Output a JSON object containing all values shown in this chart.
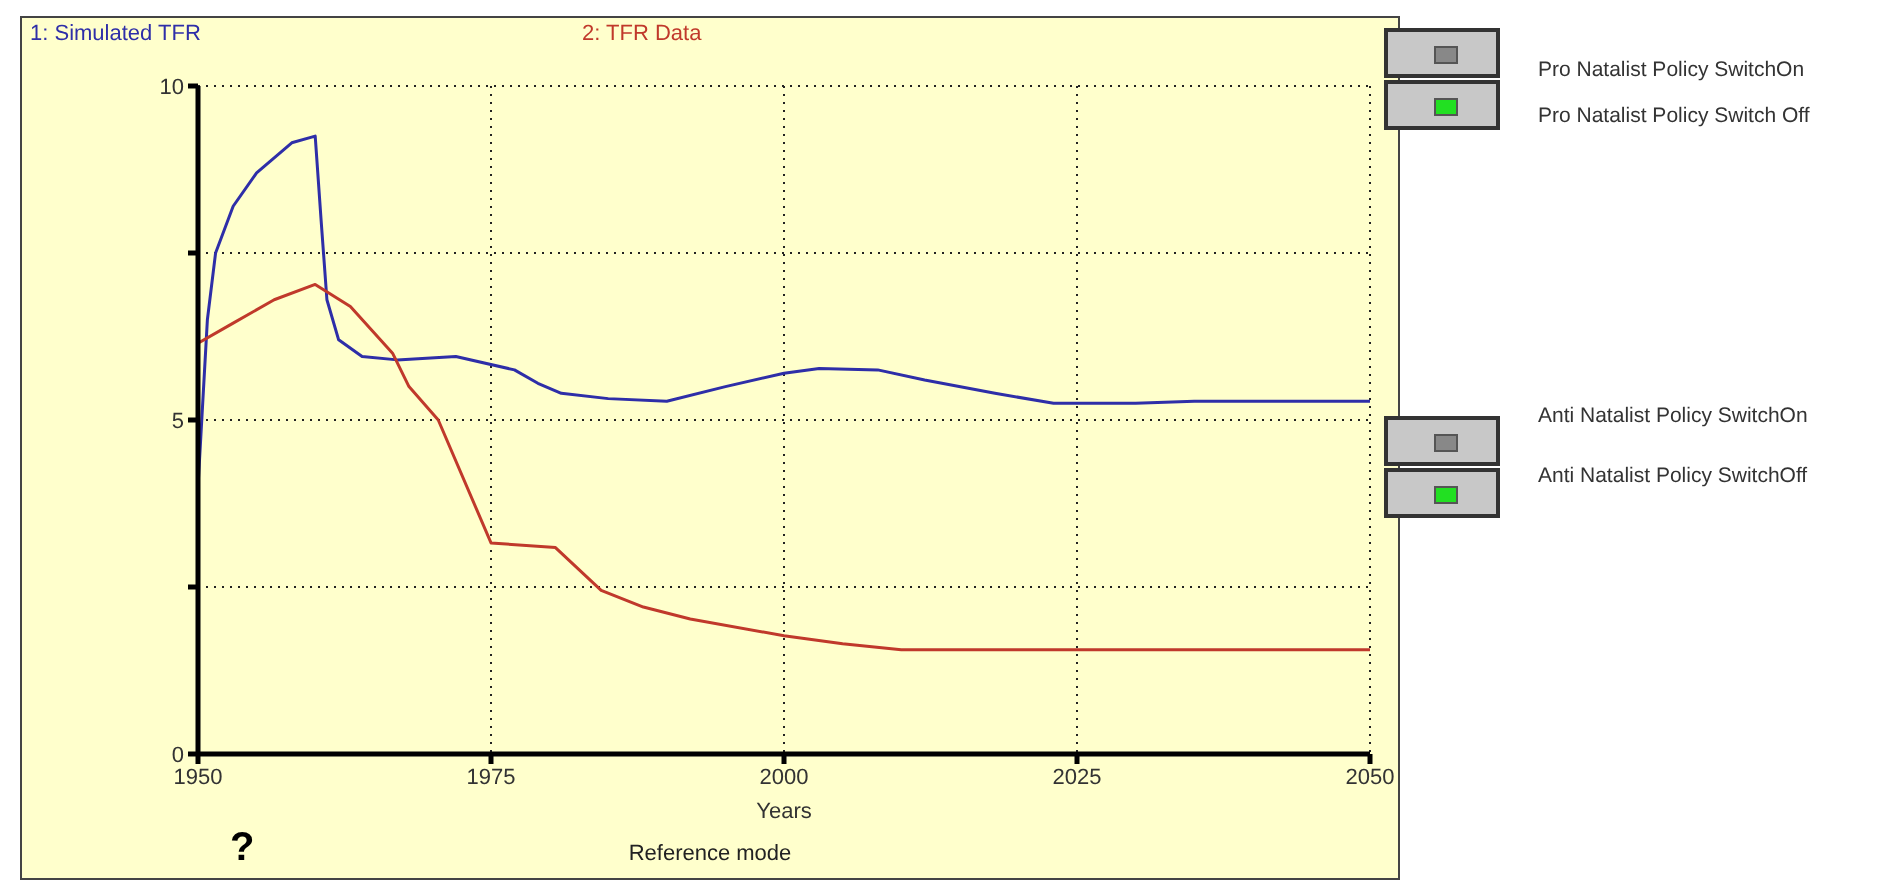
{
  "chart_data": {
    "type": "line",
    "xlabel": "Years",
    "legend": "top",
    "grid": true,
    "line_style": "solid",
    "marker": "none",
    "xlim": [
      1950,
      2050
    ],
    "xticks": [
      1950,
      1975,
      2000,
      2025,
      2050
    ],
    "ylim": [
      0,
      10
    ],
    "yticks": [
      0,
      {
        "value": 2.5,
        "label": null
      },
      5,
      {
        "value": 7.5,
        "label": null
      },
      10
    ],
    "series": [
      {
        "name": "1: Simulated TFR",
        "color": "#2e2ea8",
        "x": [
          1950,
          1950.8,
          1951.5,
          1953,
          1955,
          1958,
          1960,
          1960.5,
          1961,
          1962,
          1964,
          1967,
          1972,
          1977,
          1979,
          1981,
          1985,
          1990,
          1995,
          2000,
          2003,
          2008,
          2012,
          2018,
          2023,
          2030,
          2035,
          2050
        ],
        "values": [
          4.0,
          6.5,
          7.5,
          8.2,
          8.7,
          9.15,
          9.25,
          8.0,
          6.8,
          6.2,
          5.95,
          5.9,
          5.95,
          5.75,
          5.55,
          5.4,
          5.32,
          5.28,
          5.5,
          5.7,
          5.77,
          5.75,
          5.6,
          5.4,
          5.25,
          5.25,
          5.28,
          5.28
        ]
      },
      {
        "name": "2: TFR Data",
        "color": "#c0392b",
        "x": [
          1950,
          1953,
          1956.5,
          1960,
          1963,
          1966.6,
          1968,
          1970.5,
          1975,
          1980.5,
          1984.4,
          1988,
          1992,
          2000,
          2005,
          2010,
          2050
        ],
        "values": [
          6.15,
          6.45,
          6.8,
          7.03,
          6.7,
          6.0,
          5.5,
          5.0,
          3.16,
          3.09,
          2.45,
          2.2,
          2.02,
          1.77,
          1.65,
          1.56,
          1.56
        ]
      }
    ],
    "annotations": [
      "Reference mode",
      "Pro Natalist Policy SwitchOn",
      "Pro Natalist Policy Switch Off",
      "Anti Natalist Policy SwitchOn",
      "Anti Natalist Policy SwitchOff",
      "?"
    ]
  }
}
